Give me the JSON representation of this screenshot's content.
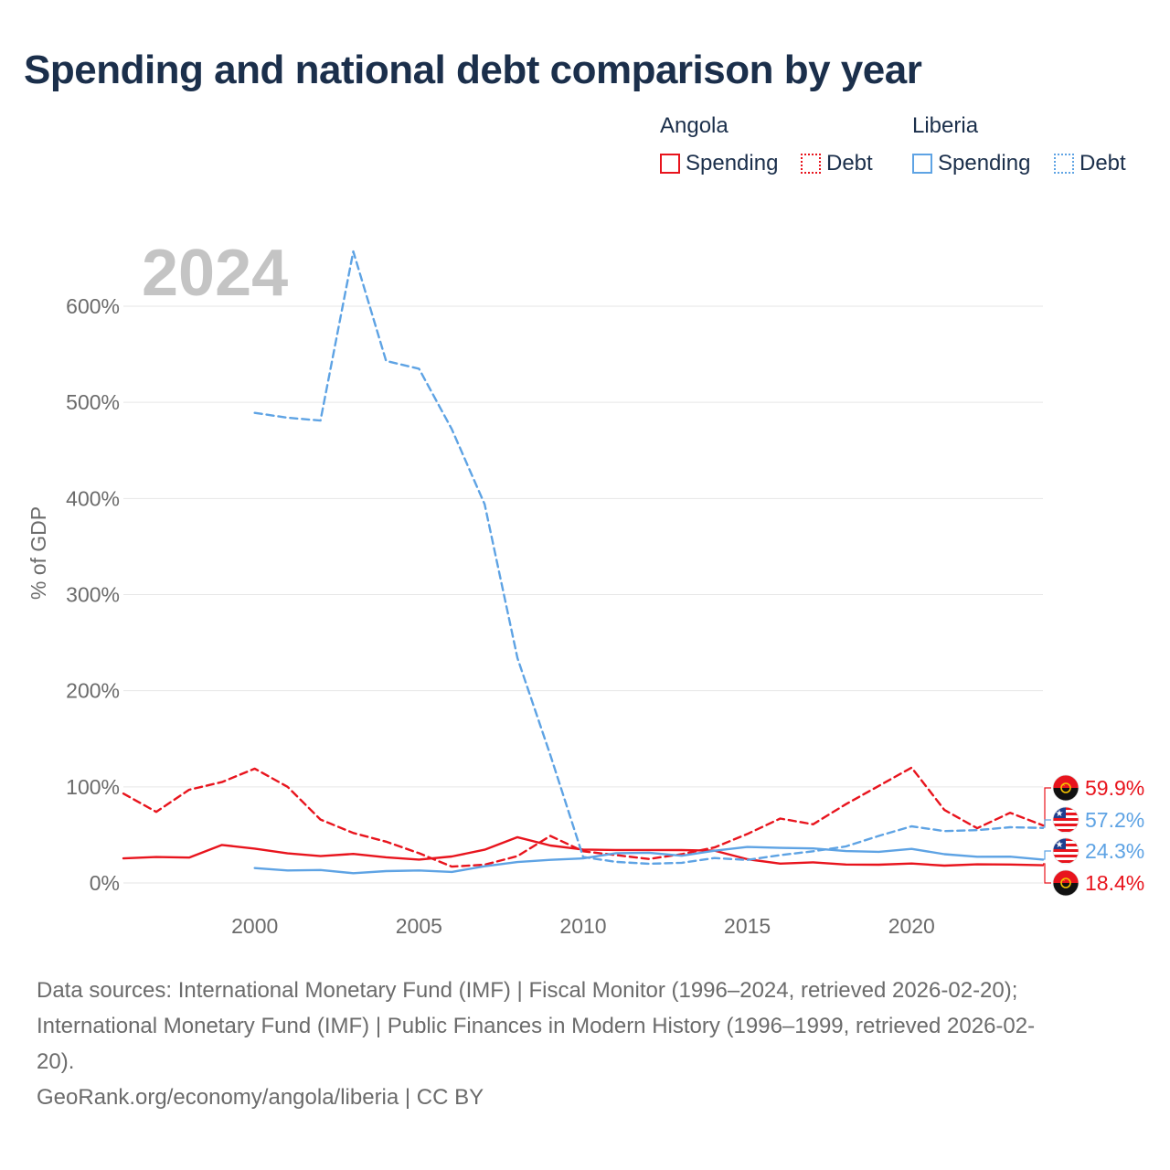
{
  "title": "Spending and national debt comparison by year",
  "legend": {
    "groups": [
      {
        "name": "Angola",
        "items": [
          {
            "label": "Spending",
            "style": "solid",
            "color": "#e8141d"
          },
          {
            "label": "Debt",
            "style": "dotted",
            "color": "#e8141d"
          }
        ]
      },
      {
        "name": "Liberia",
        "items": [
          {
            "label": "Spending",
            "style": "solid",
            "color": "#5ea3e4"
          },
          {
            "label": "Debt",
            "style": "dotted",
            "color": "#5ea3e4"
          }
        ]
      }
    ]
  },
  "colors": {
    "angola": "#e8141d",
    "liberia": "#5ea3e4",
    "grid": "#e6e6e6",
    "axis_text": "#6b6b6b",
    "year_watermark": "#c4c4c4",
    "title": "#1b2f4b"
  },
  "chart_data": {
    "type": "line",
    "title": "Spending and national debt comparison by year",
    "year_label": "2024",
    "ylabel": "% of GDP",
    "xlabel": "",
    "xlim": [
      1996,
      2024
    ],
    "ylim": [
      0,
      600
    ],
    "x_ticks": [
      2000,
      2005,
      2010,
      2015,
      2020
    ],
    "x_tick_labels": [
      "2000",
      "2005",
      "2010",
      "2015",
      "2020"
    ],
    "y_ticks": [
      0,
      100,
      200,
      300,
      400,
      500,
      600
    ],
    "y_tick_labels": [
      "0%",
      "100%",
      "200%",
      "300%",
      "400%",
      "500%",
      "600%"
    ],
    "series": [
      {
        "name": "Angola Spending",
        "country": "Angola",
        "metric": "Spending",
        "dashed": false,
        "color": "#e8141d",
        "x": [
          1996,
          1997,
          1998,
          1999,
          2000,
          2001,
          2002,
          2003,
          2004,
          2005,
          2006,
          2007,
          2008,
          2009,
          2010,
          2011,
          2012,
          2013,
          2014,
          2015,
          2016,
          2017,
          2018,
          2019,
          2020,
          2021,
          2022,
          2023,
          2024
        ],
        "values": [
          25.6,
          27.0,
          26.4,
          39.6,
          35.8,
          30.8,
          28.0,
          30.2,
          26.7,
          24.3,
          27.6,
          34.6,
          47.6,
          39.0,
          34.8,
          34.3,
          34.3,
          34.2,
          33.7,
          24.7,
          20.2,
          21.5,
          19.2,
          19.0,
          20.3,
          18.1,
          19.4,
          19.2,
          18.4
        ]
      },
      {
        "name": "Angola Debt",
        "country": "Angola",
        "metric": "Debt",
        "dashed": true,
        "color": "#e8141d",
        "x": [
          1996,
          1997,
          1998,
          1999,
          2000,
          2001,
          2002,
          2003,
          2004,
          2005,
          2006,
          2007,
          2008,
          2009,
          2010,
          2011,
          2012,
          2013,
          2014,
          2015,
          2016,
          2017,
          2018,
          2019,
          2020,
          2021,
          2022,
          2023,
          2024
        ],
        "values": [
          93,
          74,
          97,
          105,
          119,
          100,
          66,
          52,
          43,
          31,
          17,
          19,
          28,
          49,
          33,
          29,
          25,
          30,
          37,
          51,
          67,
          61,
          82,
          101,
          120,
          76,
          57,
          73,
          59.9
        ]
      },
      {
        "name": "Liberia Spending",
        "country": "Liberia",
        "metric": "Spending",
        "dashed": false,
        "color": "#5ea3e4",
        "x": [
          2000,
          2001,
          2002,
          2003,
          2004,
          2005,
          2006,
          2007,
          2008,
          2009,
          2010,
          2011,
          2012,
          2013,
          2014,
          2015,
          2016,
          2017,
          2018,
          2019,
          2020,
          2021,
          2022,
          2023,
          2024
        ],
        "values": [
          15.5,
          13.0,
          13.5,
          10.2,
          12.4,
          13.0,
          11.5,
          17.4,
          21.8,
          24.1,
          25.6,
          31.0,
          31.5,
          28.3,
          33.6,
          37.5,
          36.5,
          35.9,
          33.2,
          32.4,
          35.5,
          30.0,
          27.3,
          27.4,
          24.3
        ]
      },
      {
        "name": "Liberia Debt",
        "country": "Liberia",
        "metric": "Debt",
        "dashed": true,
        "color": "#5ea3e4",
        "x": [
          2000,
          2001,
          2002,
          2003,
          2004,
          2005,
          2006,
          2007,
          2008,
          2009,
          2010,
          2011,
          2012,
          2013,
          2014,
          2015,
          2016,
          2017,
          2018,
          2019,
          2020,
          2021,
          2022,
          2023,
          2024
        ],
        "values": [
          489,
          484,
          481,
          657,
          543,
          535,
          472,
          394,
          234,
          133,
          27,
          22,
          20,
          21,
          26,
          24,
          29,
          33,
          38,
          49,
          59,
          54,
          55,
          58,
          57.2
        ]
      }
    ],
    "end_labels": [
      {
        "country": "Angola",
        "text": "59.9%",
        "color": "#e8141d"
      },
      {
        "country": "Liberia",
        "text": "57.2%",
        "color": "#5ea3e4"
      },
      {
        "country": "Liberia",
        "text": "24.3%",
        "color": "#5ea3e4"
      },
      {
        "country": "Angola",
        "text": "18.4%",
        "color": "#e8141d"
      }
    ]
  },
  "footer": {
    "sources_lines": [
      "Data sources: International Monetary Fund (IMF) | Fiscal Monitor (1996–2024, retrieved 2026-02-20);",
      "International Monetary Fund (IMF) | Public Finances in Modern History (1996–1999, retrieved 2026-02-",
      "20)."
    ],
    "credit": "GeoRank.org/economy/angola/liberia | CC BY"
  }
}
